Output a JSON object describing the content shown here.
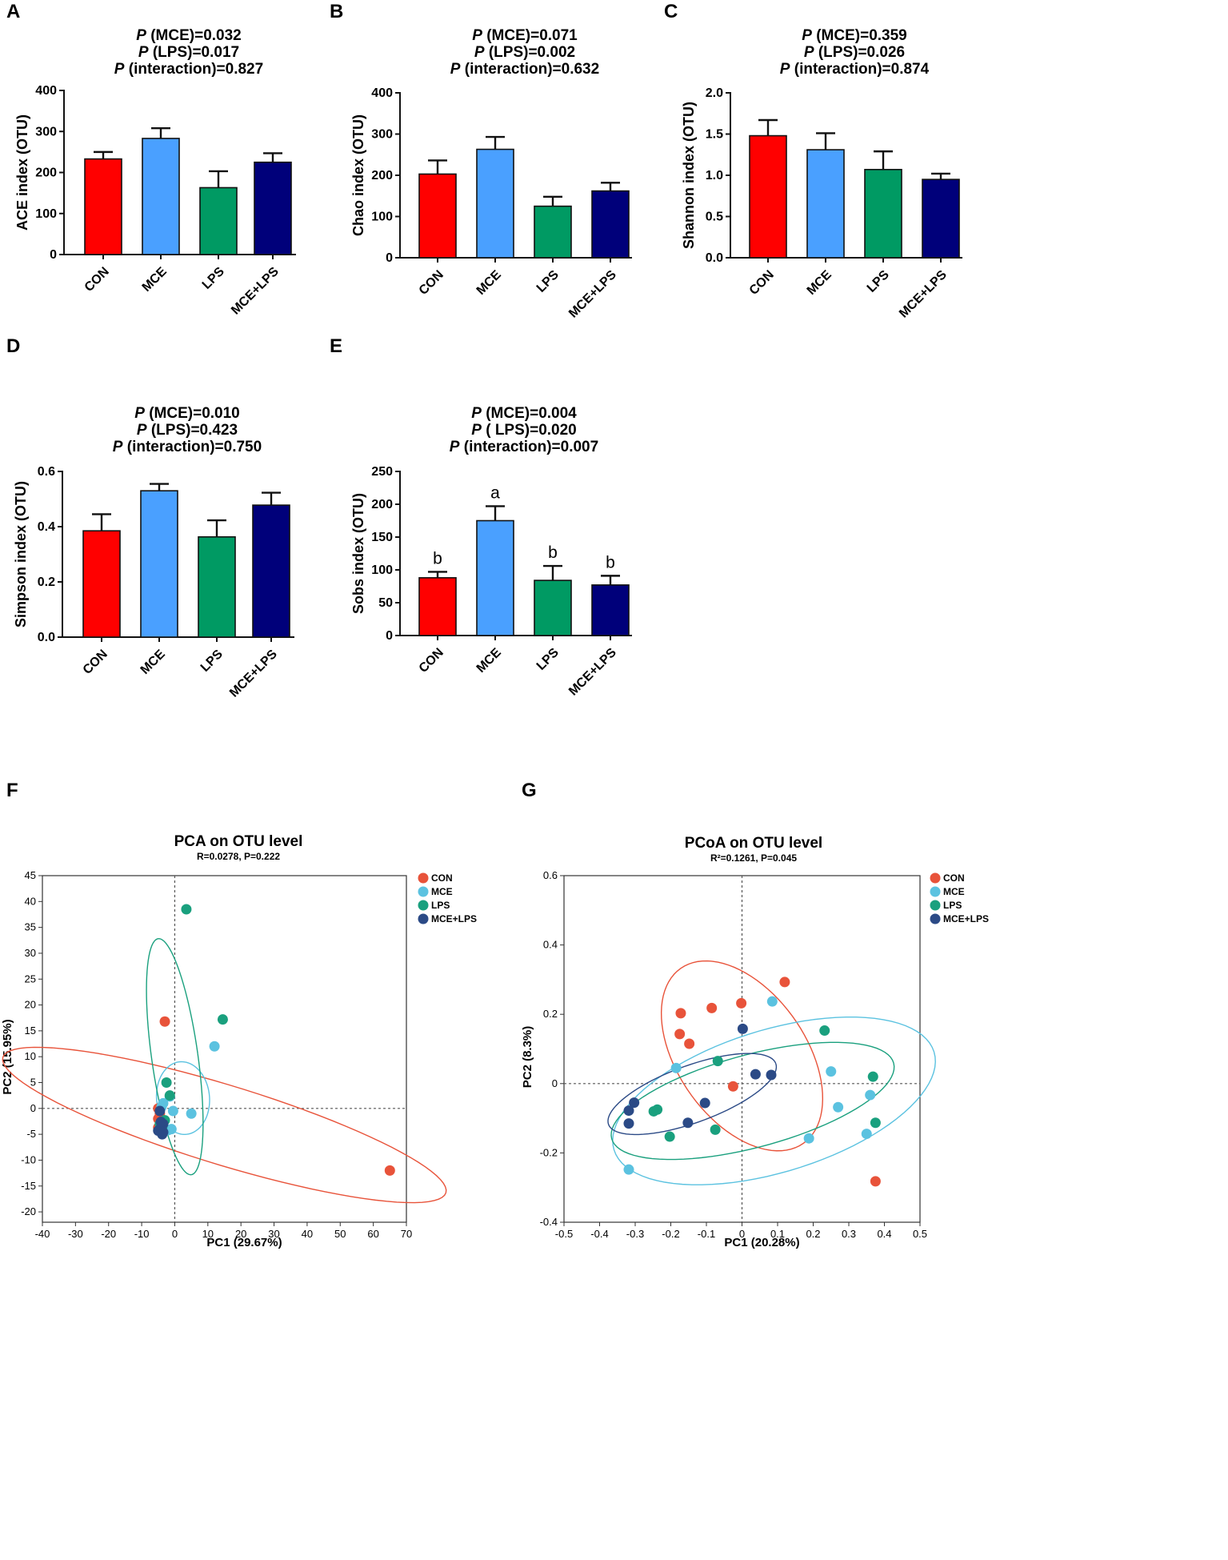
{
  "colors": {
    "CON": "#ff0000",
    "MCE": "#4aa0ff",
    "LPS": "#009a63",
    "MCE+LPS": "#00007a",
    "sc_CON": "#e8533a",
    "sc_MCE": "#5bc2e0",
    "sc_LPS": "#1aa07e",
    "sc_MCE+LPS": "#2b4a86"
  },
  "chart_data": [
    {
      "id": "A",
      "type": "bar",
      "panel_label": "A",
      "title_lines": [
        {
          "p": "P",
          "rest": " (MCE)=0.032"
        },
        {
          "p": "P",
          "rest": " (LPS)=0.017"
        },
        {
          "p": "P",
          "rest": " (interaction)=0.827"
        }
      ],
      "ylabel": "ACE index (OTU)",
      "categories": [
        "CON",
        "MCE",
        "LPS",
        "MCE+LPS"
      ],
      "values": [
        233,
        283,
        163,
        225
      ],
      "errors": [
        17,
        25,
        40,
        22
      ],
      "letters": [],
      "ylim": [
        0,
        400
      ],
      "yticks": [
        0,
        100,
        200,
        300,
        400
      ],
      "ytick_labels": [
        "0",
        "100",
        "200",
        "300",
        "400"
      ]
    },
    {
      "id": "B",
      "type": "bar",
      "panel_label": "B",
      "title_lines": [
        {
          "p": "P",
          "rest": " (MCE)=0.071"
        },
        {
          "p": "P",
          "rest": " (LPS)=0.002"
        },
        {
          "p": "P",
          "rest": " (interaction)=0.632"
        }
      ],
      "ylabel": "Chao index (OTU)",
      "categories": [
        "CON",
        "MCE",
        "LPS",
        "MCE+LPS"
      ],
      "values": [
        203,
        263,
        125,
        162
      ],
      "errors": [
        33,
        30,
        23,
        20
      ],
      "letters": [],
      "ylim": [
        0,
        400
      ],
      "yticks": [
        0,
        100,
        200,
        300,
        400
      ],
      "ytick_labels": [
        "0",
        "100",
        "200",
        "300",
        "400"
      ]
    },
    {
      "id": "C",
      "type": "bar",
      "panel_label": "C",
      "title_lines": [
        {
          "p": "P",
          "rest": " (MCE)=0.359"
        },
        {
          "p": "P",
          "rest": " (LPS)=0.026"
        },
        {
          "p": "P",
          "rest": " (interaction)=0.874"
        }
      ],
      "ylabel": "Shannon index (OTU)",
      "categories": [
        "CON",
        "MCE",
        "LPS",
        "MCE+LPS"
      ],
      "values": [
        1.48,
        1.31,
        1.07,
        0.95
      ],
      "errors": [
        0.19,
        0.2,
        0.22,
        0.07
      ],
      "letters": [],
      "ylim": [
        0,
        2.0
      ],
      "yticks": [
        0,
        0.5,
        1.0,
        1.5,
        2.0
      ],
      "ytick_labels": [
        "0.0",
        "0.5",
        "1.0",
        "1.5",
        "2.0"
      ]
    },
    {
      "id": "D",
      "type": "bar",
      "panel_label": "D",
      "title_lines": [
        {
          "p": "P",
          "rest": " (MCE)=0.010"
        },
        {
          "p": "P",
          "rest": " (LPS)=0.423"
        },
        {
          "p": "P",
          "rest": " (interaction)=0.750"
        }
      ],
      "ylabel": "Simpson index (OTU)",
      "categories": [
        "CON",
        "MCE",
        "LPS",
        "MCE+LPS"
      ],
      "values": [
        0.385,
        0.53,
        0.363,
        0.478
      ],
      "errors": [
        0.06,
        0.025,
        0.06,
        0.045
      ],
      "letters": [],
      "ylim": [
        0,
        0.6
      ],
      "yticks": [
        0,
        0.2,
        0.4,
        0.6
      ],
      "ytick_labels": [
        "0.0",
        "0.2",
        "0.4",
        "0.6"
      ]
    },
    {
      "id": "E",
      "type": "bar",
      "panel_label": "E",
      "title_lines": [
        {
          "p": "P",
          "rest": " (MCE)=0.004"
        },
        {
          "p": "P",
          "rest": " ( LPS)=0.020"
        },
        {
          "p": "P",
          "rest": " (interaction)=0.007"
        }
      ],
      "ylabel": "Sobs index (OTU)",
      "categories": [
        "CON",
        "MCE",
        "LPS",
        "MCE+LPS"
      ],
      "values": [
        88,
        175,
        84,
        77
      ],
      "errors": [
        9,
        22,
        22,
        14
      ],
      "letters": [
        "b",
        "a",
        "b",
        "b"
      ],
      "ylim": [
        0,
        250
      ],
      "yticks": [
        0,
        50,
        100,
        150,
        200,
        250
      ],
      "ytick_labels": [
        "0",
        "50",
        "100",
        "150",
        "200",
        "250"
      ]
    },
    {
      "id": "F",
      "type": "scatter",
      "panel_label": "F",
      "title": "PCA on OTU level",
      "subtitle": "R=0.0278, P=0.222",
      "xlabel": "PC1 (29.67%)",
      "ylabel": "PC2 (15.95%)",
      "xlim": [
        -40,
        70
      ],
      "ylim": [
        -22,
        45
      ],
      "xticks": [
        -40,
        -30,
        -20,
        -10,
        0,
        10,
        20,
        30,
        40,
        50,
        60,
        70
      ],
      "yticks": [
        -20,
        -15,
        -10,
        -5,
        0,
        5,
        10,
        15,
        20,
        25,
        30,
        35,
        40,
        45
      ],
      "legend": [
        "CON",
        "MCE",
        "LPS",
        "MCE+LPS"
      ],
      "legend_position": "top-right",
      "series": [
        {
          "name": "CON",
          "points": [
            [
              -3,
              16.8
            ],
            [
              65,
              -12
            ],
            [
              -5,
              0
            ],
            [
              -4.5,
              -1
            ],
            [
              -5,
              -2
            ],
            [
              -4,
              -2.5
            ],
            [
              -4.5,
              -3.2
            ],
            [
              -5,
              -3.7
            ]
          ]
        },
        {
          "name": "MCE",
          "points": [
            [
              12,
              12
            ],
            [
              5,
              -1
            ],
            [
              -0.5,
              -0.5
            ],
            [
              -3.5,
              1
            ],
            [
              -1,
              -4
            ],
            [
              -2,
              -4.2
            ],
            [
              -1.5,
              2.3
            ],
            [
              -4,
              0.3
            ]
          ]
        },
        {
          "name": "LPS",
          "points": [
            [
              3.5,
              38.5
            ],
            [
              14.5,
              17.2
            ],
            [
              -2.5,
              5
            ],
            [
              -1.5,
              2.5
            ],
            [
              -4,
              -2.8
            ],
            [
              -4.5,
              -3
            ],
            [
              -3.8,
              -3.6
            ],
            [
              -3,
              -2.3
            ]
          ]
        },
        {
          "name": "MCE+LPS",
          "points": [
            [
              -4.5,
              -0.5
            ],
            [
              -3.5,
              -3
            ],
            [
              -4,
              -3.5
            ],
            [
              -4.5,
              -4
            ],
            [
              -5,
              -4.3
            ],
            [
              -3.5,
              -4.6
            ],
            [
              -4.2,
              -2.6
            ],
            [
              -3.8,
              -5
            ]
          ]
        }
      ],
      "ellipses": [
        {
          "name": "CON",
          "cx": 15,
          "cy": -3.2,
          "rx": 70,
          "ry": 12,
          "angle": -17
        },
        {
          "name": "MCE",
          "cx": 2.5,
          "cy": 2,
          "rx": 8,
          "ry": 11,
          "angle": 5
        },
        {
          "name": "LPS",
          "cx": 0,
          "cy": 10,
          "rx": 7,
          "ry": 36,
          "angle": 8
        },
        {
          "name": "MCE+LPS",
          "cx": -4.2,
          "cy": -2.9,
          "rx": 1.4,
          "ry": 2.4,
          "angle": 0
        }
      ]
    },
    {
      "id": "G",
      "type": "scatter",
      "panel_label": "G",
      "title": "PCoA on OTU level",
      "subtitle": "R²=0.1261, P=0.045",
      "xlabel": "PC1 (20.28%)",
      "ylabel": "PC2 (8.3%)",
      "xlim": [
        -0.5,
        0.5
      ],
      "ylim": [
        -0.4,
        0.6
      ],
      "xticks": [
        -0.5,
        -0.4,
        -0.3,
        -0.2,
        -0.1,
        0,
        0.1,
        0.2,
        0.3,
        0.4,
        0.5
      ],
      "xtick_labels": [
        "-0.5",
        "-0.4",
        "-0.3",
        "-0.2",
        "-0.1",
        "0",
        "0.1",
        "0.2",
        "0.3",
        "0.4",
        "0.5"
      ],
      "yticks": [
        -0.4,
        -0.2,
        0,
        0.2,
        0.4,
        0.6
      ],
      "ytick_labels": [
        "-0.4",
        "-0.2",
        "0",
        "0.2",
        "0.4",
        "0.6"
      ],
      "legend": [
        "CON",
        "MCE",
        "LPS",
        "MCE+LPS"
      ],
      "legend_position": "top-right",
      "series": [
        {
          "name": "CON",
          "points": [
            [
              0.12,
              0.293
            ],
            [
              -0.002,
              0.232
            ],
            [
              -0.085,
              0.218
            ],
            [
              -0.172,
              0.203
            ],
            [
              -0.175,
              0.143
            ],
            [
              -0.148,
              0.115
            ],
            [
              -0.025,
              -0.008
            ],
            [
              0.375,
              -0.282
            ]
          ]
        },
        {
          "name": "MCE",
          "points": [
            [
              0.085,
              0.237
            ],
            [
              0.25,
              0.035
            ],
            [
              -0.185,
              0.045
            ],
            [
              0.36,
              -0.033
            ],
            [
              0.27,
              -0.068
            ],
            [
              0.188,
              -0.158
            ],
            [
              0.35,
              -0.145
            ],
            [
              -0.318,
              -0.248
            ]
          ]
        },
        {
          "name": "LPS",
          "points": [
            [
              0.232,
              0.153
            ],
            [
              -0.068,
              0.065
            ],
            [
              0.368,
              0.02
            ],
            [
              -0.238,
              -0.075
            ],
            [
              -0.248,
              -0.08
            ],
            [
              0.375,
              -0.113
            ],
            [
              -0.075,
              -0.133
            ],
            [
              -0.203,
              -0.153
            ]
          ]
        },
        {
          "name": "MCE+LPS",
          "points": [
            [
              0.002,
              0.158
            ],
            [
              0.038,
              0.027
            ],
            [
              0.082,
              0.025
            ],
            [
              -0.104,
              -0.056
            ],
            [
              -0.303,
              -0.055
            ],
            [
              -0.318,
              -0.078
            ],
            [
              -0.152,
              -0.113
            ],
            [
              -0.318,
              -0.115
            ]
          ]
        }
      ],
      "ellipses": [
        {
          "name": "CON",
          "cx": 0.0,
          "cy": 0.08,
          "rx": 0.3,
          "ry": 0.18,
          "angle": -55
        },
        {
          "name": "MCE",
          "cx": 0.09,
          "cy": -0.05,
          "rx": 0.47,
          "ry": 0.2,
          "angle": 17
        },
        {
          "name": "LPS",
          "cx": 0.03,
          "cy": -0.05,
          "rx": 0.41,
          "ry": 0.13,
          "angle": 15
        },
        {
          "name": "MCE+LPS",
          "cx": -0.14,
          "cy": -0.03,
          "rx": 0.25,
          "ry": 0.08,
          "angle": 20
        }
      ]
    }
  ]
}
